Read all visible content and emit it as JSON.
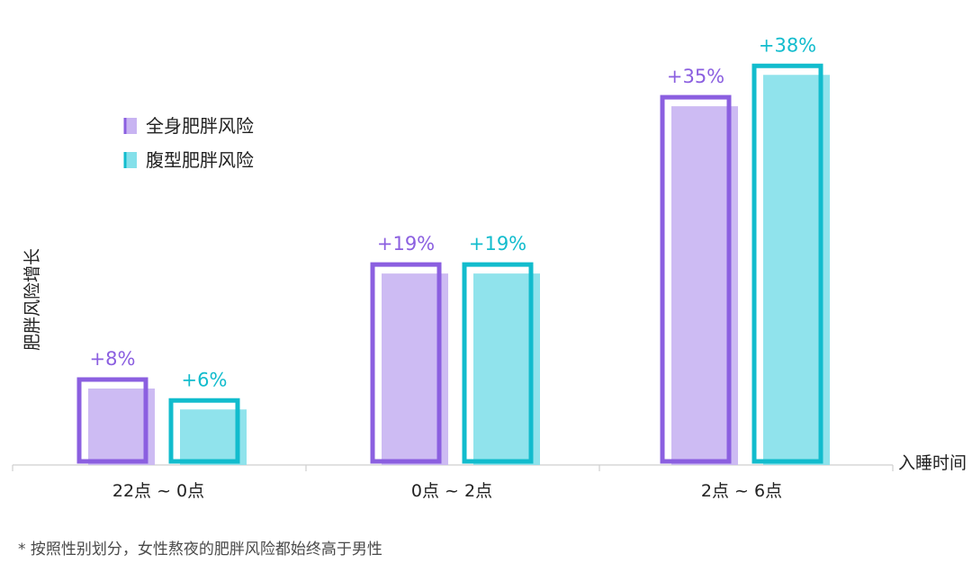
{
  "chart_data": {
    "type": "bar",
    "title": "",
    "xlabel": "入睡时间",
    "ylabel": "肥胖风险增长",
    "categories": [
      "22点 ~ 0点",
      "0点 ~ 2点",
      "2点 ~ 6点"
    ],
    "series": [
      {
        "name": "全身肥胖风险",
        "values": [
          8,
          19,
          35
        ],
        "labels": [
          "+8%",
          "+19%",
          "+35%"
        ],
        "color": "#8b5fe0",
        "fill": "#c8b4f2"
      },
      {
        "name": "腹型肥胖风险",
        "values": [
          6,
          19,
          38
        ],
        "labels": [
          "+6%",
          "+19%",
          "+38%"
        ],
        "color": "#12bccd",
        "fill": "#84e0ea"
      }
    ],
    "ylim": [
      0,
      40
    ],
    "grid": false,
    "legend_position": "top-left"
  },
  "footnote": "* 按照性别划分，女性熬夜的肥胖风险都始终高于男性"
}
